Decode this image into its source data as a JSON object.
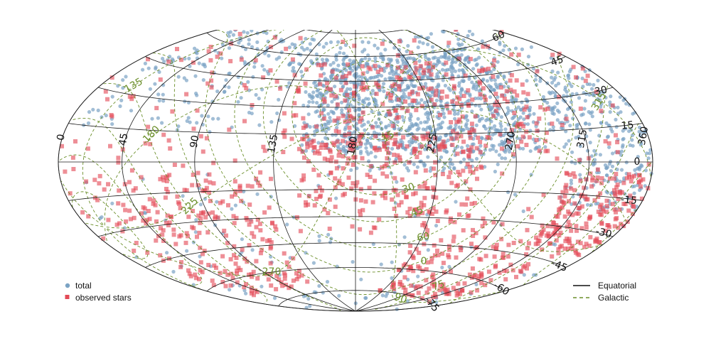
{
  "chart_data": {
    "type": "scatter",
    "projection": "hammer-aitoff",
    "grid": true,
    "series": [
      {
        "name": "total",
        "color": "#7ba3c4",
        "marker": "circle",
        "count": 1900,
        "concentration": "upper half, dense band across right side between dec 0 and 60"
      },
      {
        "name": "observed stars",
        "color": "#e34a57",
        "marker": "square",
        "count": 1250,
        "concentration": "spread across sky, dense south-west and near dec 0 centre"
      }
    ],
    "equatorial_ra_labels": [
      "0",
      "45",
      "90",
      "135",
      "180",
      "225",
      "270",
      "315",
      "360"
    ],
    "equatorial_dec_labels": [
      "60",
      "45",
      "30",
      "15",
      "0",
      "-15",
      "-30",
      "-45",
      "-60",
      "-75"
    ],
    "galactic_labels": [
      "135",
      "180",
      "225",
      "270",
      "315",
      "0",
      "15",
      "30",
      "45",
      "60",
      "75",
      "90"
    ],
    "legend": {
      "left": [
        {
          "label": "total",
          "color": "#7ba3c4",
          "marker": "circle"
        },
        {
          "label": "observed stars",
          "color": "#e34a57",
          "marker": "square"
        }
      ],
      "right": [
        {
          "label": "Equatorial",
          "color": "#111111",
          "style": "solid"
        },
        {
          "label": "Galactic",
          "color": "#6b8f2a",
          "style": "dashed"
        }
      ]
    },
    "colors": {
      "equatorial": "#1a1a1a",
      "galactic": "#6b8f2a"
    }
  }
}
